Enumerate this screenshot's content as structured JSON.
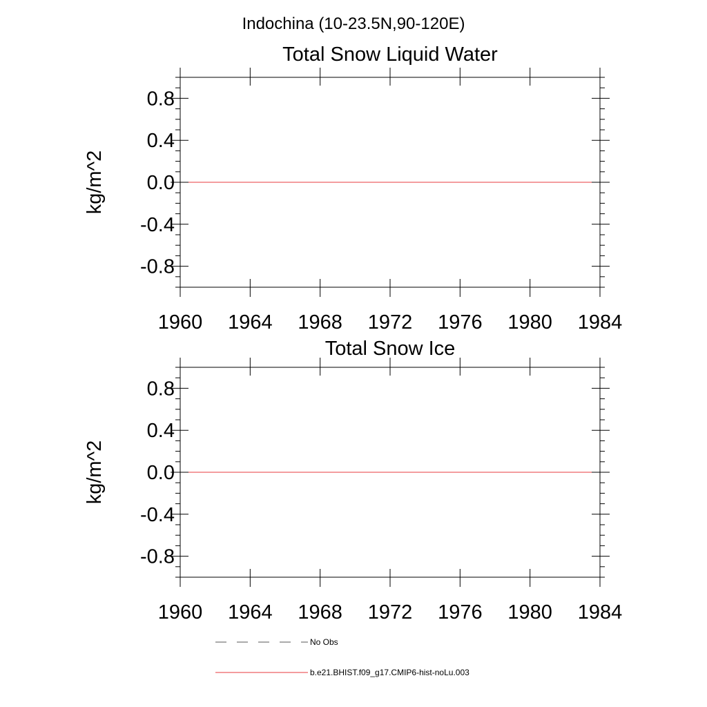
{
  "figure_title": "Indochina (10-23.5N,90-120E)",
  "chart_data": [
    {
      "type": "line",
      "title": "Total Snow Liquid Water",
      "xlabel": "",
      "ylabel": "kg/m^2",
      "xlim": [
        1960,
        1984
      ],
      "ylim": [
        -1.0,
        1.0
      ],
      "x_ticks": [
        1960,
        1964,
        1968,
        1972,
        1976,
        1980,
        1984
      ],
      "x_tick_labels": [
        "1960",
        "1964",
        "1968",
        "1972",
        "1976",
        "1980",
        "1984"
      ],
      "y_ticks": [
        0.8,
        0.4,
        0.0,
        -0.4,
        -0.8
      ],
      "y_tick_labels": [
        "0.8",
        "0.4",
        "0.0",
        "-0.4",
        "-0.8"
      ],
      "grid": false,
      "series": [
        {
          "name": "b.e21.BHIST.f09_g17.CMIP6-hist-noLu.003",
          "color": "#e8383d",
          "x": [
            1960,
            1984
          ],
          "y": [
            0.0,
            0.0
          ]
        }
      ]
    },
    {
      "type": "line",
      "title": "Total Snow Ice",
      "xlabel": "",
      "ylabel": "kg/m^2",
      "xlim": [
        1960,
        1984
      ],
      "ylim": [
        -1.0,
        1.0
      ],
      "x_ticks": [
        1960,
        1964,
        1968,
        1972,
        1976,
        1980,
        1984
      ],
      "x_tick_labels": [
        "1960",
        "1964",
        "1968",
        "1972",
        "1976",
        "1980",
        "1984"
      ],
      "y_ticks": [
        0.8,
        0.4,
        0.0,
        -0.4,
        -0.8
      ],
      "y_tick_labels": [
        "0.8",
        "0.4",
        "0.0",
        "-0.4",
        "-0.8"
      ],
      "grid": false,
      "series": [
        {
          "name": "b.e21.BHIST.f09_g17.CMIP6-hist-noLu.003",
          "color": "#e8383d",
          "x": [
            1960,
            1984
          ],
          "y": [
            0.0,
            0.0
          ]
        }
      ]
    }
  ],
  "legend": {
    "placement": "bottom",
    "entries": [
      {
        "label": "No Obs",
        "color": "#555555",
        "style": "dashed"
      },
      {
        "label": "b.e21.BHIST.f09_g17.CMIP6-hist-noLu.003",
        "color": "#e8383d",
        "style": "solid"
      }
    ]
  }
}
